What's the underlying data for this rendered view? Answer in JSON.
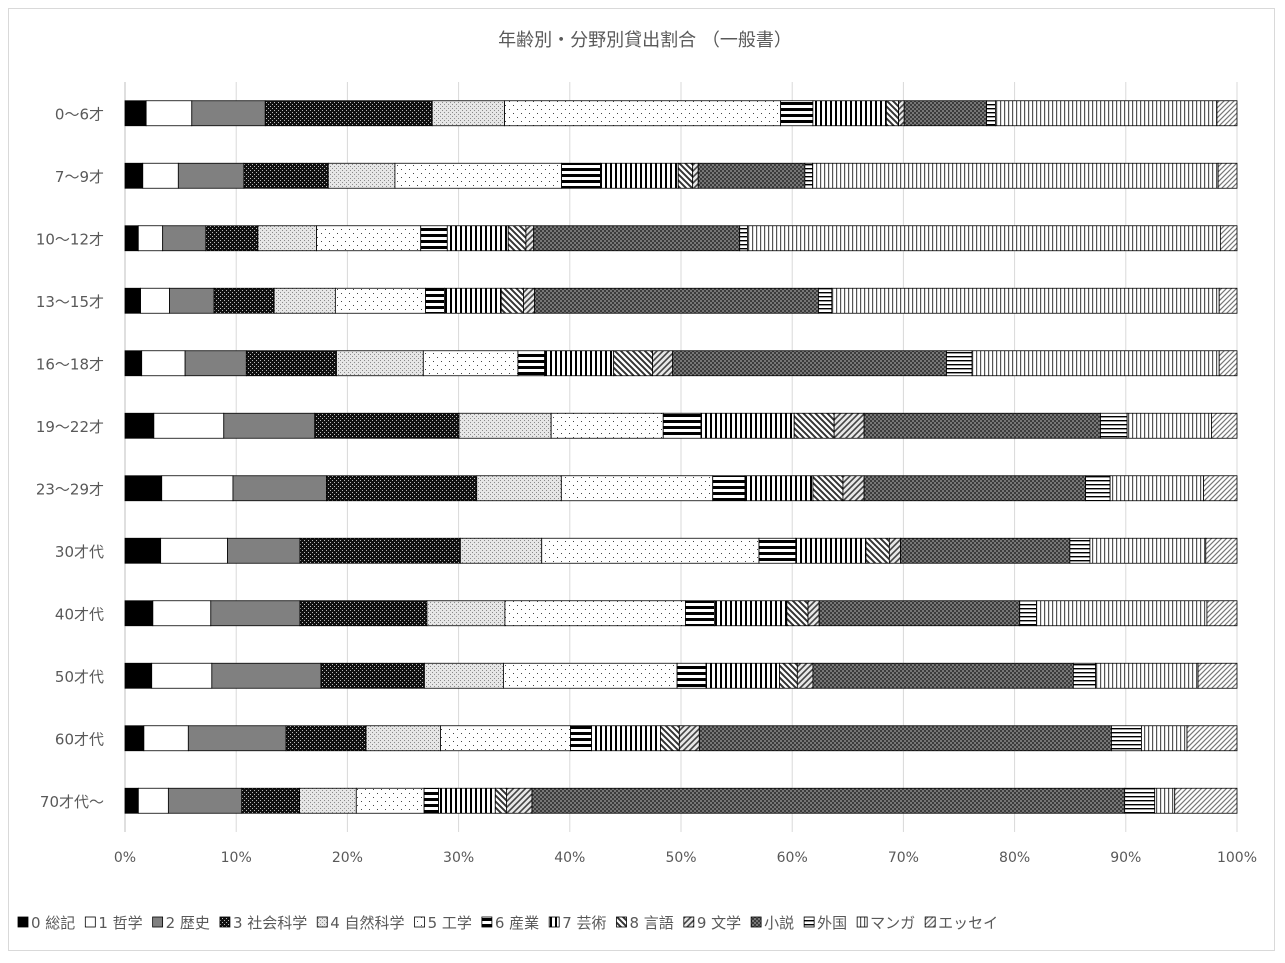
{
  "chart_data": {
    "type": "bar",
    "orientation": "horizontal",
    "stacked": "percent",
    "title": "年齢別・分野別貸出割合 （一般書）",
    "xlabel": "",
    "ylabel": "",
    "xlim": [
      0,
      100
    ],
    "x_ticks": [
      "0%",
      "10%",
      "20%",
      "30%",
      "40%",
      "50%",
      "60%",
      "70%",
      "80%",
      "90%",
      "100%"
    ],
    "grid": true,
    "legend_position": "bottom",
    "categories": [
      "0〜6才",
      "7〜9才",
      "10〜12才",
      "13〜15才",
      "16〜18才",
      "19〜22才",
      "23〜29才",
      "30才代",
      "40才代",
      "50才代",
      "60才代",
      "70才代〜"
    ],
    "series": [
      {
        "name": "0 総記",
        "pattern": "solid-black",
        "values": [
          1.9,
          1.6,
          1.2,
          1.4,
          1.5,
          2.6,
          3.3,
          3.2,
          2.5,
          2.4,
          1.7,
          1.2
        ]
      },
      {
        "name": "1 哲学",
        "pattern": "white",
        "values": [
          4.1,
          3.2,
          2.2,
          2.6,
          3.9,
          6.3,
          6.4,
          6.0,
          5.2,
          5.4,
          4.0,
          2.7
        ]
      },
      {
        "name": "2 歴史",
        "pattern": "gray",
        "values": [
          6.6,
          5.9,
          3.9,
          4.0,
          5.5,
          8.2,
          8.4,
          6.5,
          8.0,
          9.8,
          8.8,
          6.6
        ]
      },
      {
        "name": "3 社会科学",
        "pattern": "dark-checker",
        "values": [
          15.0,
          7.6,
          4.7,
          5.4,
          8.1,
          13.0,
          13.5,
          14.4,
          11.4,
          9.3,
          7.2,
          5.2
        ]
      },
      {
        "name": "4 自然科学",
        "pattern": "light-speckle",
        "values": [
          6.5,
          6.0,
          5.3,
          5.5,
          7.8,
          8.3,
          7.6,
          7.3,
          7.0,
          7.1,
          6.7,
          5.1
        ]
      },
      {
        "name": "5 工学",
        "pattern": "dots",
        "values": [
          24.8,
          15.0,
          9.4,
          8.1,
          8.5,
          10.1,
          13.6,
          19.5,
          16.2,
          15.6,
          11.7,
          6.1
        ]
      },
      {
        "name": "6 産業",
        "pattern": "horizontal-stripes",
        "values": [
          2.9,
          3.5,
          2.4,
          1.7,
          2.4,
          3.4,
          2.9,
          3.3,
          2.6,
          2.6,
          1.9,
          1.3
        ]
      },
      {
        "name": "7 芸術",
        "pattern": "vertical-stripes",
        "values": [
          6.6,
          7.0,
          5.5,
          5.1,
          6.2,
          8.4,
          6.1,
          6.3,
          6.5,
          6.6,
          6.2,
          5.1
        ]
      },
      {
        "name": "8 言語",
        "pattern": "diagonal-down",
        "values": [
          1.1,
          1.3,
          1.6,
          2.0,
          3.5,
          3.6,
          2.7,
          2.1,
          1.9,
          1.6,
          1.7,
          1.0
        ]
      },
      {
        "name": "9 文学",
        "pattern": "diagonal-up",
        "values": [
          0.5,
          0.5,
          0.7,
          1.0,
          1.8,
          2.7,
          1.9,
          1.0,
          1.0,
          1.4,
          1.8,
          2.3
        ]
      },
      {
        "name": "小説",
        "pattern": "dense-checker",
        "values": [
          7.4,
          9.6,
          18.6,
          25.5,
          24.6,
          21.3,
          19.9,
          15.2,
          18.0,
          23.4,
          37.1,
          53.3
        ]
      },
      {
        "name": "外国",
        "pattern": "horizontal-lines",
        "values": [
          0.8,
          0.7,
          0.7,
          1.2,
          2.3,
          2.4,
          2.2,
          1.8,
          1.5,
          2.0,
          2.7,
          2.7
        ]
      },
      {
        "name": "マンガ",
        "pattern": "vertical-lines",
        "values": [
          19.9,
          36.5,
          42.7,
          34.8,
          22.2,
          7.6,
          8.4,
          10.4,
          15.3,
          9.2,
          4.1,
          1.8
        ]
      },
      {
        "name": "エッセイ",
        "pattern": "diagonal-light",
        "values": [
          1.8,
          1.7,
          1.5,
          1.6,
          1.6,
          2.3,
          3.0,
          2.8,
          2.7,
          3.5,
          4.5,
          5.6
        ]
      }
    ]
  }
}
